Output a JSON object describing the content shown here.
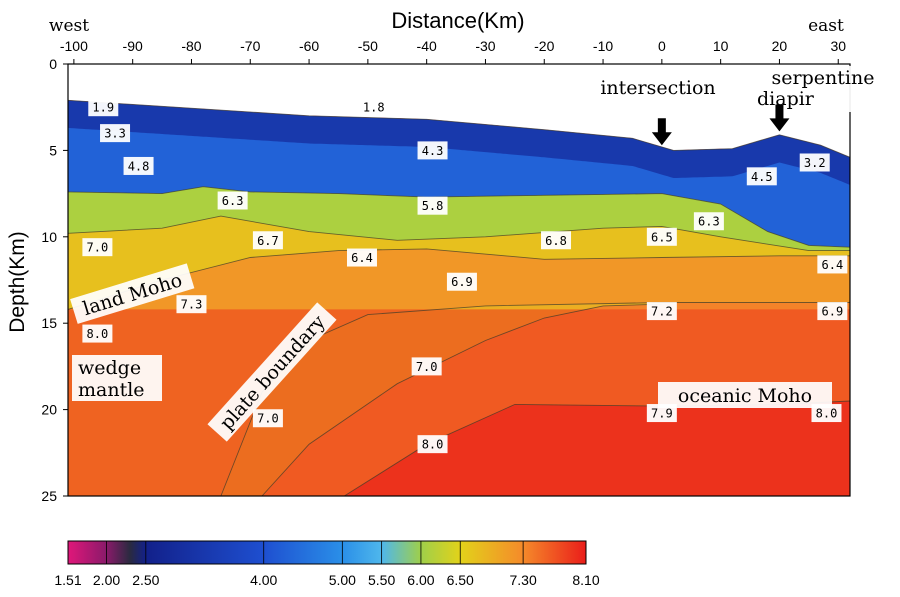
{
  "chart_data": {
    "type": "heatmap",
    "title": "Distance(Km)",
    "xlabel": "Distance(Km)",
    "ylabel": "Depth(Km)",
    "x_ticks": [
      -100,
      -90,
      -80,
      -70,
      -60,
      -50,
      -40,
      -30,
      -20,
      -10,
      0,
      10,
      20,
      30
    ],
    "y_ticks": [
      0,
      5,
      10,
      15,
      20,
      25
    ],
    "xlim": [
      -101,
      32
    ],
    "ylim": [
      0,
      25
    ],
    "side_labels": {
      "west": "west",
      "east": "east"
    },
    "layer_boundaries": [
      {
        "points": [
          [
            -101,
            2.1
          ],
          [
            -60,
            3.0
          ],
          [
            -40,
            3.2
          ],
          [
            -20,
            3.8
          ],
          [
            -5,
            4.3
          ],
          [
            2,
            5.0
          ],
          [
            12,
            4.9
          ],
          [
            20,
            4.1
          ],
          [
            27,
            4.7
          ],
          [
            32,
            5.4
          ]
        ]
      },
      {
        "points": [
          [
            -101,
            7.4
          ],
          [
            -85,
            7.5
          ],
          [
            -78,
            7.1
          ],
          [
            -70,
            7.4
          ],
          [
            -55,
            7.5
          ],
          [
            -40,
            7.7
          ],
          [
            -20,
            7.6
          ],
          [
            0,
            7.5
          ],
          [
            10,
            8.1
          ],
          [
            18,
            9.7
          ],
          [
            25,
            10.5
          ],
          [
            32,
            10.6
          ]
        ]
      },
      {
        "points": [
          [
            -101,
            9.8
          ],
          [
            -85,
            9.5
          ],
          [
            -75,
            8.8
          ],
          [
            -60,
            9.7
          ],
          [
            -45,
            10.2
          ],
          [
            -30,
            10.0
          ],
          [
            -10,
            9.5
          ],
          [
            0,
            9.4
          ],
          [
            10,
            10.0
          ],
          [
            25,
            10.8
          ],
          [
            32,
            10.8
          ]
        ]
      },
      {
        "points": [
          [
            -101,
            14.2
          ],
          [
            -85,
            12.5
          ],
          [
            -70,
            11.2
          ],
          [
            -55,
            10.8
          ],
          [
            -40,
            10.7
          ],
          [
            -20,
            11.3
          ],
          [
            0,
            11.2
          ],
          [
            20,
            11.1
          ],
          [
            32,
            11.1
          ]
        ]
      },
      {
        "points": [
          [
            -75,
            25
          ],
          [
            -68,
            19.0
          ],
          [
            -60,
            16.0
          ],
          [
            -50,
            14.5
          ],
          [
            -30,
            14.0
          ],
          [
            0,
            13.8
          ],
          [
            20,
            13.8
          ],
          [
            32,
            13.8
          ]
        ]
      },
      {
        "points": [
          [
            -68,
            25
          ],
          [
            -60,
            22.0
          ],
          [
            -45,
            18.5
          ],
          [
            -30,
            16.0
          ],
          [
            -20,
            14.7
          ],
          [
            -10,
            14.0
          ],
          [
            0,
            13.9
          ]
        ]
      },
      {
        "points": [
          [
            -54,
            25
          ],
          [
            -40,
            22.0
          ],
          [
            -25,
            19.7
          ],
          [
            0,
            19.8
          ],
          [
            20,
            19.7
          ],
          [
            32,
            19.5
          ]
        ]
      }
    ],
    "velocity_labels": [
      {
        "x": -95,
        "y": 2.5,
        "text": "1.9"
      },
      {
        "x": -49,
        "y": 2.5,
        "text": "1.8"
      },
      {
        "x": -93,
        "y": 4.0,
        "text": "3.3"
      },
      {
        "x": -89,
        "y": 5.9,
        "text": "4.8"
      },
      {
        "x": -39,
        "y": 5.0,
        "text": "4.3"
      },
      {
        "x": 17,
        "y": 6.5,
        "text": "4.5"
      },
      {
        "x": 26,
        "y": 5.7,
        "text": "3.2"
      },
      {
        "x": -73,
        "y": 7.9,
        "text": "6.3"
      },
      {
        "x": -39,
        "y": 8.2,
        "text": "5.8"
      },
      {
        "x": 8,
        "y": 9.1,
        "text": "6.3"
      },
      {
        "x": -96,
        "y": 10.6,
        "text": "7.0"
      },
      {
        "x": -67,
        "y": 10.2,
        "text": "6.7"
      },
      {
        "x": -51,
        "y": 11.2,
        "text": "6.4"
      },
      {
        "x": -18,
        "y": 10.2,
        "text": "6.8"
      },
      {
        "x": 0,
        "y": 10.0,
        "text": "6.5"
      },
      {
        "x": 29,
        "y": 11.6,
        "text": "6.4"
      },
      {
        "x": -34,
        "y": 12.6,
        "text": "6.9"
      },
      {
        "x": -80,
        "y": 13.9,
        "text": "7.3"
      },
      {
        "x": -96,
        "y": 15.6,
        "text": "8.0"
      },
      {
        "x": 0,
        "y": 14.3,
        "text": "7.2"
      },
      {
        "x": 29,
        "y": 14.3,
        "text": "6.9"
      },
      {
        "x": -40,
        "y": 17.5,
        "text": "7.0"
      },
      {
        "x": -67,
        "y": 20.5,
        "text": "7.0"
      },
      {
        "x": -39,
        "y": 22.0,
        "text": "8.0"
      },
      {
        "x": 0,
        "y": 20.2,
        "text": "7.9"
      },
      {
        "x": 28,
        "y": 20.2,
        "text": "8.0"
      }
    ],
    "annotations": {
      "intersection": {
        "text": "intersection",
        "x": 0,
        "arrow_depth": 4.7
      },
      "serpentine": {
        "line1": "serpentine",
        "line2": "diapir",
        "x": 20,
        "arrow_depth": 3.9
      },
      "land_moho": "land Moho",
      "wedge_line1": "wedge",
      "wedge_line2": "mantle",
      "plate_boundary": "plate boundary",
      "oceanic_moho": "oceanic Moho"
    },
    "colorbar": {
      "ticks": [
        "1.51",
        "2.00",
        "2.50",
        "4.00",
        "5.00",
        "5.50",
        "6.00",
        "6.50",
        "7.30",
        "8.10"
      ],
      "tick_values": [
        1.51,
        2.0,
        2.5,
        4.0,
        5.0,
        5.5,
        6.0,
        6.5,
        7.3,
        8.1
      ],
      "color_stops": [
        {
          "v": 1.51,
          "color": "#e0177a"
        },
        {
          "v": 2.0,
          "color": "#8a1a6a"
        },
        {
          "v": 2.3,
          "color": "#2a2a40"
        },
        {
          "v": 2.5,
          "color": "#12208a"
        },
        {
          "v": 4.0,
          "color": "#1e4fd0"
        },
        {
          "v": 5.0,
          "color": "#2a8fe8"
        },
        {
          "v": 5.5,
          "color": "#4fb7ec"
        },
        {
          "v": 6.0,
          "color": "#9fcf4a"
        },
        {
          "v": 6.5,
          "color": "#e2d21a"
        },
        {
          "v": 7.3,
          "color": "#f58a2a"
        },
        {
          "v": 8.1,
          "color": "#ea1d1a"
        }
      ]
    },
    "grid": false
  }
}
